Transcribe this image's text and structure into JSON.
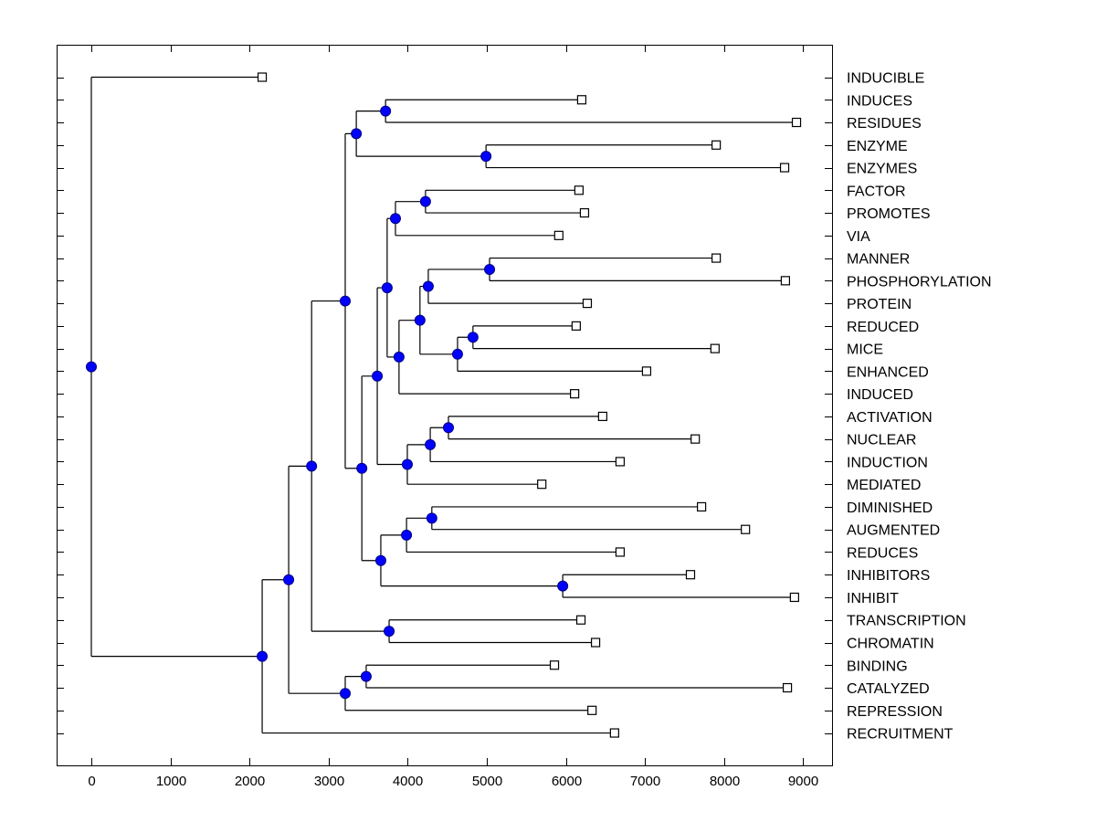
{
  "chart_data": {
    "type": "dendrogram",
    "title": "",
    "xlabel": "",
    "ylabel": "",
    "xlim": [
      -450,
      9350
    ],
    "xticks": [
      0,
      1000,
      2000,
      3000,
      4000,
      5000,
      6000,
      7000,
      8000,
      9000
    ],
    "xtick_labels": [
      "0",
      "1000",
      "2000",
      "3000",
      "4000",
      "5000",
      "6000",
      "7000",
      "8000",
      "9000"
    ],
    "grid": false,
    "legend": "none",
    "colors": {
      "node_fill": "#0000ff",
      "node_stroke": "#000080",
      "leaf_fill": "#ffffff",
      "line": "#000000"
    },
    "leaf_order": [
      "INDUCIBLE",
      "INDUCES",
      "RESIDUES",
      "ENZYME",
      "ENZYMES",
      "FACTOR",
      "PROMOTES",
      "VIA",
      "MANNER",
      "PHOSPHORYLATION",
      "PROTEIN",
      "REDUCED",
      "MICE",
      "ENHANCED",
      "INDUCED",
      "ACTIVATION",
      "NUCLEAR",
      "INDUCTION",
      "MEDIATED",
      "DIMINISHED",
      "AUGMENTED",
      "REDUCES",
      "INHIBITORS",
      "INHIBIT",
      "TRANSCRIPTION",
      "CHROMATIN",
      "BINDING",
      "CATALYZED",
      "REPRESSION",
      "RECRUITMENT"
    ],
    "leaves": {
      "INDUCIBLE": 2160,
      "INDUCES": 6200,
      "RESIDUES": 8915,
      "ENZYME": 7900,
      "ENZYMES": 8765,
      "FACTOR": 6165,
      "PROMOTES": 6235,
      "VIA": 5910,
      "MANNER": 7900,
      "PHOSPHORYLATION": 8775,
      "PROTEIN": 6270,
      "REDUCED": 6130,
      "MICE": 7885,
      "ENHANCED": 7020,
      "INDUCED": 6110,
      "ACTIVATION": 6465,
      "NUCLEAR": 7635,
      "INDUCTION": 6685,
      "MEDIATED": 5695,
      "DIMINISHED": 7715,
      "AUGMENTED": 8270,
      "REDUCES": 6685,
      "INHIBITORS": 7575,
      "INHIBIT": 8890,
      "TRANSCRIPTION": 6190,
      "CHROMATIN": 6375,
      "BINDING": 5855,
      "CATALYZED": 8800,
      "REPRESSION": 6330,
      "RECRUITMENT": 6615
    },
    "tree": {
      "value": 0,
      "children": [
        "INDUCIBLE",
        {
          "value": 2160,
          "children": [
            {
              "value": 2495,
              "children": [
                {
                  "value": 2785,
                  "children": [
                    {
                      "value": 3210,
                      "children": [
                        {
                          "value": 3350,
                          "children": [
                            {
                              "value": 3720,
                              "children": [
                                "INDUCES",
                                "RESIDUES"
                              ]
                            },
                            {
                              "value": 4990,
                              "children": [
                                "ENZYME",
                                "ENZYMES"
                              ]
                            }
                          ]
                        },
                        {
                          "value": 3420,
                          "children": [
                            {
                              "value": 3615,
                              "children": [
                                {
                                  "value": 3740,
                                  "children": [
                                    {
                                      "value": 3845,
                                      "children": [
                                        {
                                          "value": 4225,
                                          "children": [
                                            "FACTOR",
                                            "PROMOTES"
                                          ]
                                        },
                                        "VIA"
                                      ]
                                    },
                                    {
                                      "value": 3890,
                                      "children": [
                                        {
                                          "value": 4155,
                                          "children": [
                                            {
                                              "value": 4260,
                                              "children": [
                                                {
                                                  "value": 5035,
                                                  "children": [
                                                    "MANNER",
                                                    "PHOSPHORYLATION"
                                                  ]
                                                },
                                                "PROTEIN"
                                              ]
                                            },
                                            {
                                              "value": 4630,
                                              "children": [
                                                {
                                                  "value": 4825,
                                                  "children": [
                                                    "REDUCED",
                                                    "MICE"
                                                  ]
                                                },
                                                "ENHANCED"
                                              ]
                                            }
                                          ]
                                        },
                                        "INDUCED"
                                      ]
                                    }
                                  ]
                                },
                                {
                                  "value": 3995,
                                  "children": [
                                    {
                                      "value": 4285,
                                      "children": [
                                        {
                                          "value": 4515,
                                          "children": [
                                            "ACTIVATION",
                                            "NUCLEAR"
                                          ]
                                        },
                                        "INDUCTION"
                                      ]
                                    },
                                    "MEDIATED"
                                  ]
                                }
                              ]
                            },
                            {
                              "value": 3660,
                              "children": [
                                {
                                  "value": 3985,
                                  "children": [
                                    {
                                      "value": 4305,
                                      "children": [
                                        "DIMINISHED",
                                        "AUGMENTED"
                                      ]
                                    },
                                    "REDUCES"
                                  ]
                                },
                                {
                                  "value": 5960,
                                  "children": [
                                    "INHIBITORS",
                                    "INHIBIT"
                                  ]
                                }
                              ]
                            }
                          ]
                        }
                      ]
                    },
                    {
                      "value": 3765,
                      "children": [
                        "TRANSCRIPTION",
                        "CHROMATIN"
                      ]
                    }
                  ]
                },
                {
                  "value": 3210,
                  "children": [
                    {
                      "value": 3475,
                      "children": [
                        "BINDING",
                        "CATALYZED"
                      ]
                    },
                    "REPRESSION"
                  ]
                }
              ]
            },
            "RECRUITMENT"
          ]
        }
      ]
    }
  }
}
